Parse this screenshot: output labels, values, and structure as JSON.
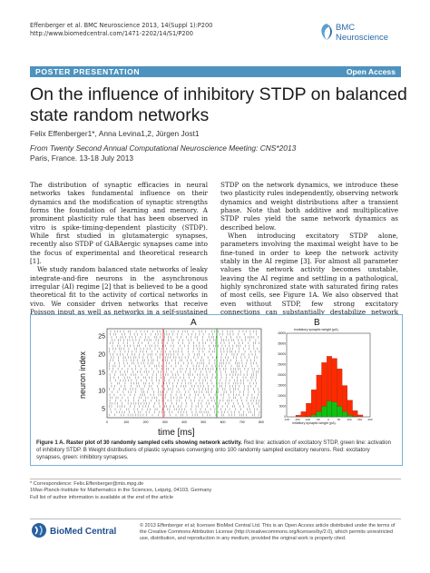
{
  "header": {
    "citation_line1": "Effenberger et al. BMC Neuroscience 2013, 14(Suppl 1):P200",
    "citation_line2": "http://www.biomedcentral.com/1471-2202/14/S1/P200",
    "logo_line1": "BMC",
    "logo_line2": "Neuroscience"
  },
  "banner": {
    "left": "POSTER PRESENTATION",
    "right": "Open Access"
  },
  "title": {
    "line1": "On the influence of inhibitory STDP on balanced",
    "line2": "state random networks"
  },
  "authors": "Felix Effenberger1*, Anna Levina1,2, Jürgen Jost1",
  "conference": {
    "line1": "From Twenty Second Annual Computational Neuroscience Meeting: CNS*2013",
    "line2": "Paris, France. 13-18 July 2013"
  },
  "body": {
    "left": [
      "The distribution of synaptic efficacies in neural networks takes fundamental influence on their dynamics and the modification of synaptic strengths forms the foundation of learning and memory. A prominent plasticity rule that has been observed in vitro is spike-timing-dependent plasticity (STDP). While first studied in glutamatergic synapses, recently also STDP of GABAergic synapses came into the focus of experimental and theoretical research [1].",
      "We study random balanced state networks of leaky integrate-and-fire neurons in the asynchronous irregular (AI) regime [2] that is believed to be a good theoretical fit to the activity of cortical networks in vivo. We consider driven networks that receive Poisson input as well as networks in a self-sustained state of activity. In order to assess the influence of excitatory and inhibitory"
    ],
    "right": [
      "STDP on the network dynamics, we introduce these two plasticity rules independently, observing network dynamics and weight distributions after a transient phase. Note that both additive and multiplicative STDP rules yield the same network dynamics as described below.",
      "When introducing excitatory STDP alone, parameters involving the maximal weight have to be fine-tuned in order to keep the network activity stably in the AI regime [3]. For almost all parameter values the network activity becomes unstable, leaving the AI regime and settling in a pathological, highly synchronized state with saturated firing rates of most cells, see Figure 1A. We also observed that even without STDP, few strong excitatory connections can substantially destabilize network dynamics yielding pathological states. Interestingly, this"
    ]
  },
  "figure": {
    "panel_a_label": "A",
    "panel_b_label": "B",
    "raster": {
      "ylabel": "neuron index",
      "xlabel": "time [ms]",
      "yticks": [
        "25",
        "20",
        "15",
        "10",
        "5"
      ],
      "xticks": [
        "0",
        "100",
        "200",
        "300",
        "400",
        "500",
        "600",
        "700",
        "800"
      ]
    },
    "histogram": {
      "title": "excitatory synaptic weight (pA)",
      "xlabel": "inhibitory synaptic weight (pA)",
      "yticks": [
        "40000",
        "35000",
        "30000",
        "25000",
        "20000",
        "15000",
        "10000",
        "5000",
        "0"
      ],
      "xticks": [
        "-100",
        "-150",
        "-100",
        "-50",
        "0",
        "50",
        "100",
        "150",
        "200"
      ],
      "colors": {
        "excitatory": "#ff2a00",
        "inhibitory": "#10c010"
      }
    },
    "caption_bold": "Figure 1 A. Raster plot of 30 randomly sampled cells showing network activity.",
    "caption_rest": " Red line: activation of excitatory STDP, green line: activation of inhibitory STDP. B Weight distributions of plastic synapses converging onto 100 randomly sampled excitatory neurons. Red: excitatory synapses, green: inhibitory synapses."
  },
  "chart_data": {
    "type": "bar",
    "title": "excitatory synaptic weight (pA)",
    "xlabel": "inhibitory synaptic weight (pA)",
    "ylim": [
      0,
      40000
    ],
    "series": [
      {
        "name": "excitatory",
        "values": [
          800,
          2500,
          6500,
          13000,
          20000,
          26000,
          29000,
          28000,
          23000,
          15000,
          8000,
          3000,
          900
        ]
      },
      {
        "name": "inhibitory",
        "values": [
          0,
          0,
          200,
          900,
          2500,
          5000,
          7500,
          7000,
          5000,
          2500,
          800,
          200,
          0
        ]
      }
    ]
  },
  "footnotes": {
    "corr": "* Correspondence: Felix.Effenberger@mis.mpg.de",
    "aff1": "1Max-Planck-Institute for Mathematics in the Sciences, Leipzig, 04103, Germany",
    "full": "Full list of author information is available at the end of the article"
  },
  "bottom": {
    "logo": "BioMed Central",
    "license": "© 2013 Effenberger et al; licensee BioMed Central Ltd. This is an Open Access article distributed under the terms of the Creative Commons Attribution License (http://creativecommons.org/licenses/by/2.0), which permits unrestricted use, distribution, and reproduction in any medium, provided the original work is properly cited."
  }
}
